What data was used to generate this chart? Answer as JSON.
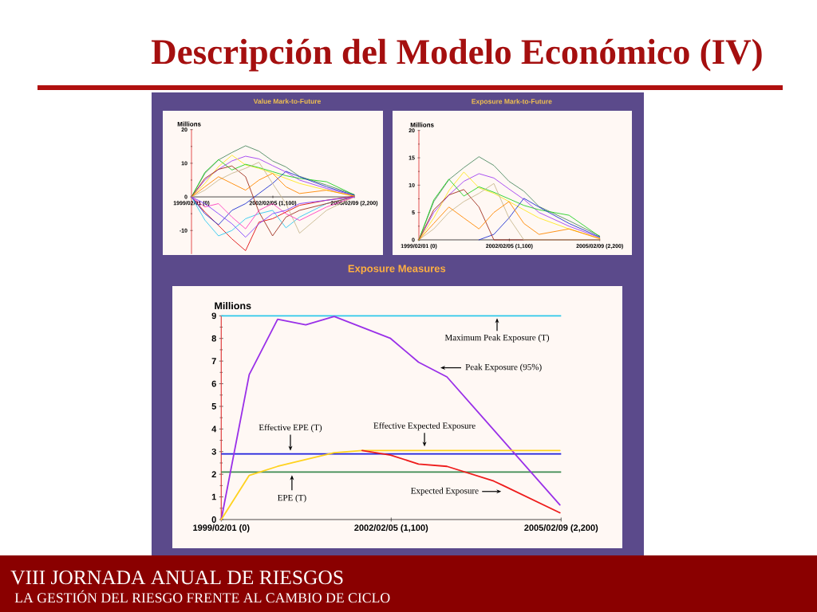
{
  "chart_data": [
    {
      "type": "other",
      "title": "Descripción del Modelo Económico (IV)",
      "annotations": [
        "VIII JORNADA ANUAL DE RIESGOS",
        "LA GESTIÓN DEL RIESGO FRENTE AL CAMBIO DE CICLO"
      ]
    },
    {
      "type": "line",
      "title": "Value Mark-to-Future",
      "ylabel": "Millions",
      "xlim": [
        "1999-02-01",
        "2005-02-09"
      ],
      "xticks": [
        {
          "value": "1999-02-01",
          "label": "1999/02/01 (0)"
        },
        {
          "value": "2002-02-05",
          "label": "2002/02/05 (1,100)"
        },
        {
          "value": "2005-02-09",
          "label": "2005/02/09 (2,200)"
        }
      ],
      "ylim": [
        -17,
        20
      ],
      "yticks": [
        -10,
        0,
        10,
        20
      ],
      "x": [
        "1999-02-01",
        "1999-08-01",
        "2000-02-01",
        "2000-08-01",
        "2001-02-01",
        "2001-08-01",
        "2002-02-01",
        "2002-08-01",
        "2003-02-01",
        "2004-02-01",
        "2005-02-09"
      ],
      "series": [
        {
          "color": "#4e8a62",
          "values": [
            0,
            7,
            11,
            13.2,
            15.2,
            13.6,
            10.7,
            8.9,
            6.1,
            3.5,
            0.7
          ]
        },
        {
          "color": "#a040f0",
          "values": [
            0,
            5,
            8.2,
            10.7,
            12.1,
            11.3,
            9.3,
            7.4,
            5,
            2.5,
            0.4
          ]
        },
        {
          "color": "#ffe820",
          "values": [
            0,
            4,
            9,
            12.4,
            9.5,
            8.5,
            7,
            5.5,
            4,
            2,
            0.3
          ]
        },
        {
          "color": "#22d022",
          "values": [
            0,
            7.3,
            11.1,
            8,
            9.7,
            8.7,
            7.5,
            6.3,
            5.5,
            4.5,
            0.6
          ]
        },
        {
          "color": "#e01010",
          "values": [
            0,
            -4.5,
            -8.5,
            -12.5,
            -16,
            -7.5,
            -6.5,
            -4.5,
            -2.5,
            -1,
            0.2
          ]
        },
        {
          "color": "#30c8f0",
          "values": [
            0,
            -6.9,
            -11.6,
            -10,
            -6.5,
            -5,
            -4,
            -9.2,
            -6,
            -2,
            0
          ]
        },
        {
          "color": "#2030d0",
          "values": [
            0,
            -5,
            -8.3,
            -4,
            -2,
            1,
            4,
            7.6,
            6,
            3,
            0.5
          ]
        },
        {
          "color": "#a03020",
          "values": [
            0,
            5.5,
            8.2,
            9.2,
            6,
            -4.5,
            -11.6,
            -6,
            -4,
            -2,
            0
          ]
        },
        {
          "color": "#c8b890",
          "values": [
            0,
            2,
            5,
            7,
            8.5,
            10.3,
            4,
            -2,
            -10.8,
            -4,
            0
          ]
        },
        {
          "color": "#ff40c0",
          "values": [
            0,
            -3,
            -2,
            -6,
            -9.5,
            -4,
            -2,
            -5,
            -7,
            -3,
            0
          ]
        },
        {
          "color": "#ff8800",
          "values": [
            0,
            3,
            6,
            4,
            2,
            5,
            7,
            3,
            1,
            2,
            0.2
          ]
        },
        {
          "color": "#8040ff",
          "values": [
            0,
            -2,
            -5,
            -8,
            -12,
            -8,
            -5,
            -4,
            -2,
            -1,
            0
          ]
        }
      ]
    },
    {
      "type": "line",
      "title": "Exposure Mark-to-Future",
      "ylabel": "Millions",
      "xlim": [
        "1999-02-01",
        "2005-02-09"
      ],
      "xticks": [
        {
          "value": "1999-02-01",
          "label": "1999/02/01 (0)"
        },
        {
          "value": "2002-02-05",
          "label": "2002/02/05 (1,100)"
        },
        {
          "value": "2005-02-09",
          "label": "2005/02/09 (2,200)"
        }
      ],
      "ylim": [
        0,
        20
      ],
      "yticks": [
        0,
        5,
        10,
        15,
        20
      ],
      "x": [
        "1999-02-01",
        "1999-08-01",
        "2000-02-01",
        "2000-08-01",
        "2001-02-01",
        "2001-08-01",
        "2002-02-01",
        "2002-08-01",
        "2003-02-01",
        "2004-02-01",
        "2005-02-09"
      ],
      "series": [
        {
          "color": "#4e8a62",
          "values": [
            0,
            7,
            11,
            13.2,
            15.2,
            13.6,
            10.7,
            8.9,
            6.1,
            3.5,
            0.7
          ]
        },
        {
          "color": "#a040f0",
          "values": [
            0,
            5,
            8.2,
            10.7,
            12.1,
            11.3,
            9.3,
            7.4,
            5,
            2.5,
            0.4
          ]
        },
        {
          "color": "#ffe820",
          "values": [
            0,
            4,
            9,
            12.4,
            9.5,
            8.5,
            7,
            5.5,
            4,
            2,
            0.3
          ]
        },
        {
          "color": "#22d022",
          "values": [
            0,
            7.3,
            11.1,
            8,
            9.7,
            8.7,
            7.5,
            6.3,
            5.5,
            4.5,
            0.6
          ]
        },
        {
          "color": "#2030d0",
          "values": [
            null,
            null,
            null,
            null,
            0,
            1,
            4,
            7.6,
            6,
            3,
            0.5
          ]
        },
        {
          "color": "#a03020",
          "values": [
            0,
            5.5,
            8.2,
            9.2,
            6,
            0,
            0,
            0,
            0,
            0,
            0
          ]
        },
        {
          "color": "#c8b890",
          "values": [
            0,
            2,
            5,
            7,
            8.5,
            10.3,
            4,
            0,
            0,
            0,
            0
          ]
        },
        {
          "color": "#ff8800",
          "values": [
            0,
            3,
            6,
            4,
            2,
            5,
            7,
            3,
            1,
            2,
            0.2
          ]
        }
      ]
    },
    {
      "type": "line",
      "title": "Exposure Measures",
      "ylabel": "Millions",
      "xlim": [
        "1999-02-01",
        "2005-02-09"
      ],
      "xticks": [
        {
          "value": "1999-02-01",
          "label": "1999/02/01 (0)"
        },
        {
          "value": "2002-02-05",
          "label": "2002/02/05 (1,100)"
        },
        {
          "value": "2005-02-09",
          "label": "2005/02/09 (2,200)"
        }
      ],
      "ylim": [
        0,
        9
      ],
      "yticks": [
        0,
        1,
        2,
        3,
        4,
        5,
        6,
        7,
        8,
        9
      ],
      "series": [
        {
          "name": "Peak Exposure (95%)",
          "color": "#9a30e8",
          "x": [
            "1999-02-01",
            "1999-08-01",
            "2000-02-01",
            "2000-08-01",
            "2001-02-01",
            "2002-02-01",
            "2002-08-01",
            "2003-02-01",
            "2005-02-01"
          ],
          "values": [
            0,
            6.4,
            8.85,
            8.6,
            8.97,
            8.0,
            6.95,
            6.3,
            0.65
          ]
        },
        {
          "name": "Effective Expected Exposure",
          "color": "#ffd21e",
          "x": [
            "1999-02-01",
            "1999-08-01",
            "2000-02-01",
            "2000-08-01",
            "2001-02-01",
            "2001-08-01",
            "2005-02-01"
          ],
          "values": [
            0,
            1.95,
            2.35,
            2.65,
            2.95,
            3.05,
            3.05
          ]
        },
        {
          "name": "Expected Exposure",
          "color": "#ee1c1c",
          "x": [
            "2001-08-01",
            "2002-02-01",
            "2002-08-01",
            "2003-02-01",
            "2003-12-01",
            "2004-02-01",
            "2005-02-01"
          ],
          "values": [
            3.05,
            2.85,
            2.45,
            2.35,
            1.7,
            1.5,
            0.3
          ]
        }
      ],
      "ref_lines": [
        {
          "axis": "y",
          "value": 9,
          "label": "Maximum Peak Exposure (T)",
          "color": "#2ec8ea"
        },
        {
          "axis": "y",
          "value": 2.9,
          "label": "Effective EPE (T)",
          "color": "#1e1edc"
        },
        {
          "axis": "y",
          "value": 2.1,
          "label": "EPE (T)",
          "color": "#3c8a50"
        }
      ]
    }
  ]
}
